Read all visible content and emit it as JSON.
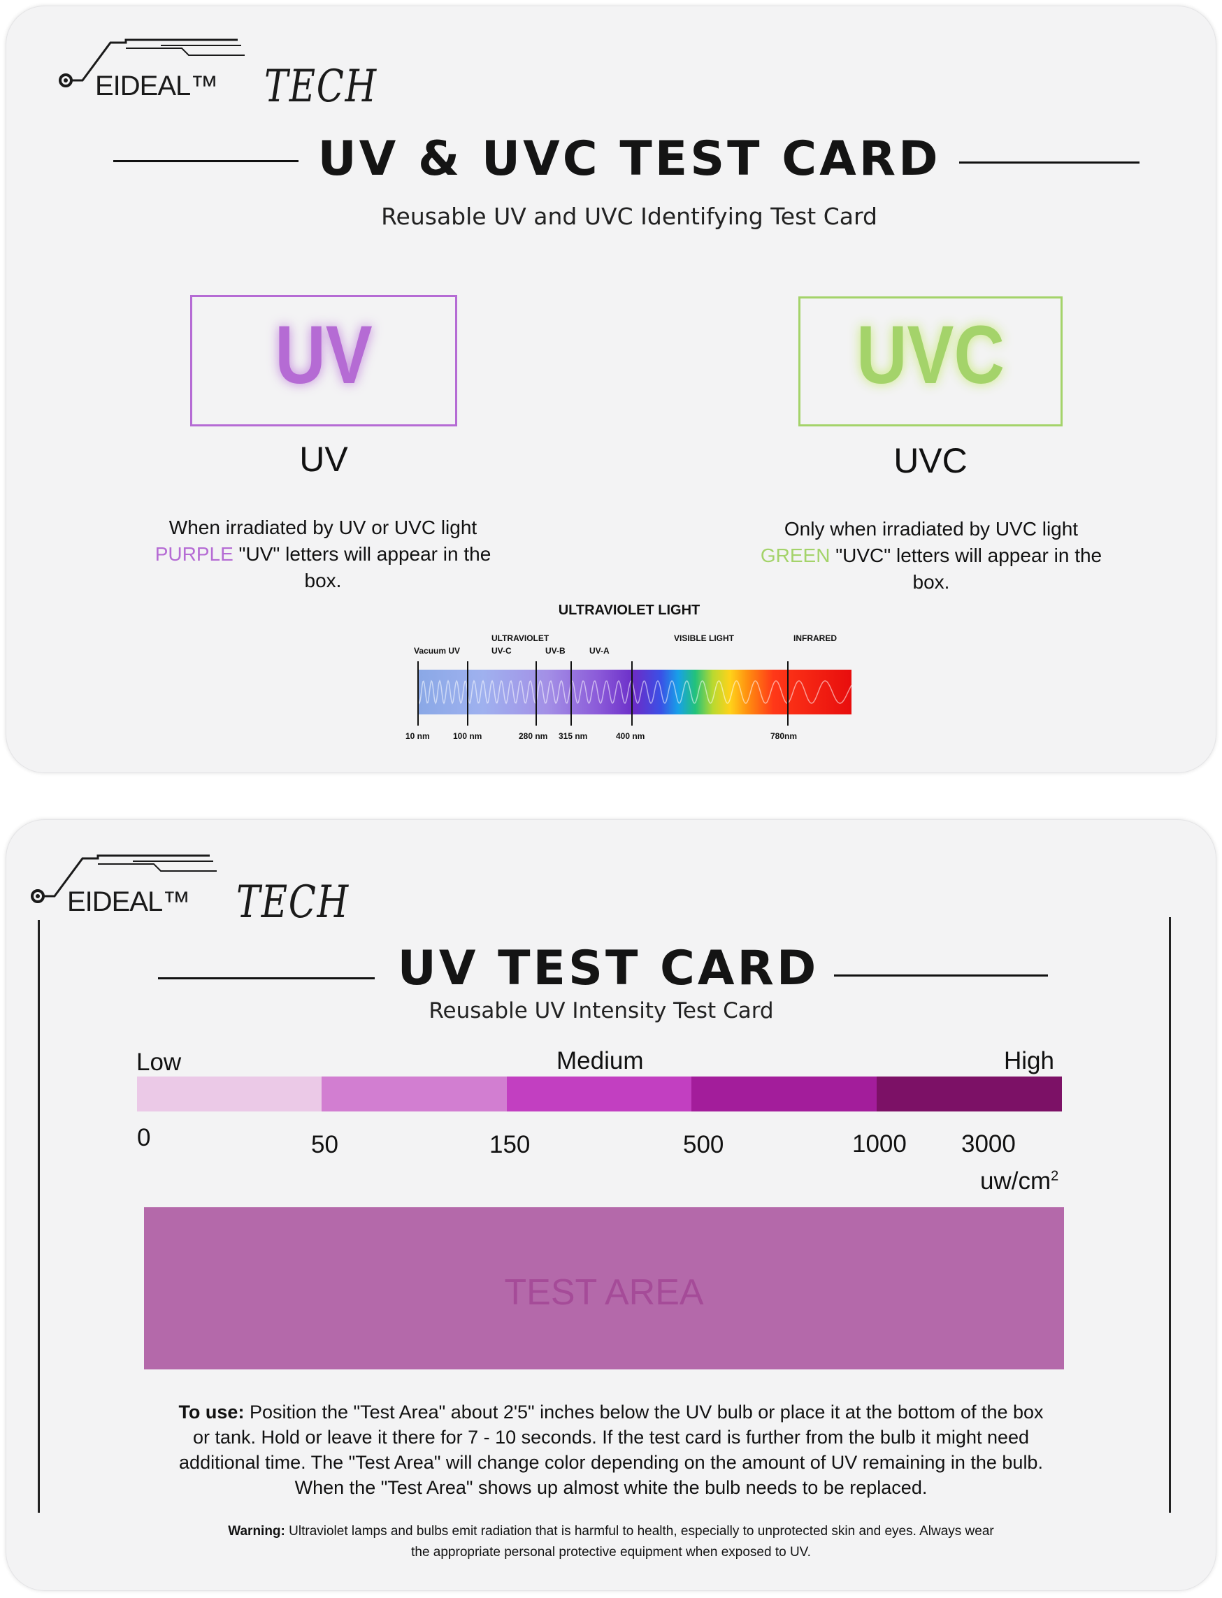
{
  "card1": {
    "brand": "EIDEAL™",
    "brand_script": "TECH",
    "title": "UV & UVC TEST CARD",
    "subtitle": "Reusable UV and UVC Identifying Test Card",
    "uv_box": {
      "glow_text": "UV",
      "label": "UV",
      "color": "#b56bd4",
      "desc_line1": "When irradiated by UV or UVC light",
      "desc_color_word": "PURPLE",
      "desc_line2_rest": " \"UV\" letters will appear in the",
      "desc_line3": "box."
    },
    "uvc_box": {
      "glow_text": "UVC",
      "label": "UVC",
      "color": "#a4d36a",
      "desc_line1": "Only when irradiated by UVC light",
      "desc_color_word": "GREEN",
      "desc_line2_rest": " \"UVC\" letters will appear in the",
      "desc_line3": "box."
    },
    "spectrum": {
      "title": "ULTRAVIOLET LIGHT",
      "group_ultraviolet": "ULTRAVIOLET",
      "visible": "VISIBLE LIGHT",
      "infrared": "INFRARED",
      "bands": [
        "Vacuum UV",
        "UV-C",
        "UV-B",
        "UV-A"
      ],
      "nm": [
        "10 nm",
        "100 nm",
        "280 nm",
        "315 nm",
        "400 nm",
        "780nm"
      ]
    }
  },
  "card2": {
    "brand": "EIDEAL™",
    "brand_script": "TECH",
    "title": "UV TEST CARD",
    "subtitle": "Reusable UV Intensity Test Card",
    "scale": {
      "low": "Low",
      "medium": "Medium",
      "high": "High",
      "values": [
        "0",
        "50",
        "150",
        "500",
        "1000",
        "3000"
      ],
      "unit": "uw/cm",
      "unit_sup": "2",
      "colors": [
        "#ebc9e7",
        "#d27ed1",
        "#c23fc1",
        "#a31d9b",
        "#7c1166"
      ]
    },
    "test_area": "TEST AREA",
    "instructions_bold": "To use:",
    "instructions_line1": " Position the \"Test Area\" about 2'5\" inches below the UV bulb or place it at the bottom of the box",
    "instructions_line2": "or tank. Hold or leave it there for 7 - 10 seconds. If the test card is further from the bulb it might need",
    "instructions_line3": "additional time. The \"Test Area\" will change color depending on the amount of UV remaining in the bulb.",
    "instructions_line4": "When the \"Test Area\" shows up almost white the bulb needs to be replaced.",
    "warning_bold": "Warning:",
    "warning_line1": " Ultraviolet lamps and bulbs emit radiation that is harmful to health, especially to unprotected skin and eyes. Always wear",
    "warning_line2": "the appropriate personal protective equipment when exposed to UV."
  }
}
